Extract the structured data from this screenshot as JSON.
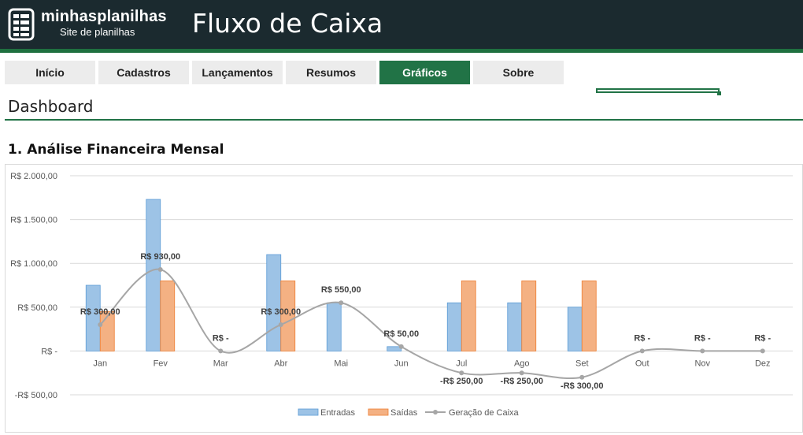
{
  "header": {
    "logo_name": "minhasplanilhas",
    "logo_sub": "Site de planilhas",
    "title": "Fluxo de Caixa"
  },
  "nav": {
    "tabs": [
      {
        "label": "Início"
      },
      {
        "label": "Cadastros"
      },
      {
        "label": "Lançamentos"
      },
      {
        "label": "Resumos"
      },
      {
        "label": "Gráficos",
        "active": true
      },
      {
        "label": "Sobre"
      }
    ]
  },
  "page": {
    "title": "Dashboard",
    "section_title": "1. Análise Financeira Mensal"
  },
  "colors": {
    "header_bg": "#1b2a2f",
    "accent": "#217346",
    "entradas": "#9dc3e6",
    "saidas": "#f4b183",
    "geracao": "#a6a6a6"
  },
  "chart_data": {
    "type": "bar",
    "categories": [
      "Jan",
      "Fev",
      "Mar",
      "Abr",
      "Mai",
      "Jun",
      "Jul",
      "Ago",
      "Set",
      "Out",
      "Nov",
      "Dez"
    ],
    "ylim": [
      -500,
      2000
    ],
    "ytick_values": [
      2000,
      1500,
      1000,
      500,
      0,
      -500
    ],
    "ytick_labels": [
      "R$ 2.000,00",
      "R$ 1.500,00",
      "R$ 1.000,00",
      "R$ 500,00",
      "R$ -",
      "-R$ 500,00"
    ],
    "grid": true,
    "legend_position": "bottom",
    "series": [
      {
        "name": "Entradas",
        "type": "bar",
        "color": "#9dc3e6",
        "values": [
          750,
          1730,
          0,
          1100,
          550,
          50,
          550,
          550,
          500,
          0,
          0,
          0
        ]
      },
      {
        "name": "Saídas",
        "type": "bar",
        "color": "#f4b183",
        "values": [
          450,
          800,
          0,
          800,
          0,
          0,
          800,
          800,
          800,
          0,
          0,
          0
        ]
      },
      {
        "name": "Geração de Caixa",
        "type": "line",
        "color": "#a6a6a6",
        "values": [
          300,
          930,
          0,
          300,
          550,
          50,
          -250,
          -250,
          -300,
          0,
          0,
          0
        ],
        "labels": [
          "R$ 300,00",
          "R$ 930,00",
          "R$ -",
          "R$ 300,00",
          "R$ 550,00",
          "R$ 50,00",
          "-R$ 250,00",
          "-R$ 250,00",
          "-R$ 300,00",
          "R$ -",
          "R$ -",
          "R$ -"
        ]
      }
    ]
  }
}
